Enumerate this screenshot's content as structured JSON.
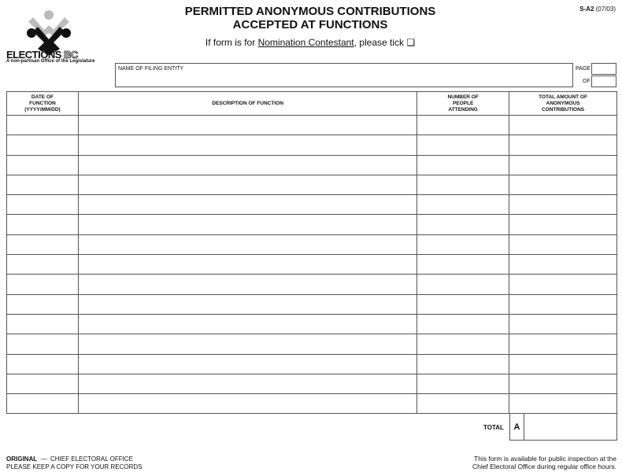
{
  "header": {
    "logo_text": "ELECTIONS BC",
    "brand_main": "ELECTIONS",
    "brand_bc": "BC",
    "tagline": "A non-partisan Office of the Legislature",
    "title_line1": "PERMITTED ANONYMOUS CONTRIBUTIONS",
    "title_line2": "ACCEPTED AT FUNCTIONS",
    "form_number": "S-A2",
    "form_version": "(07/03)",
    "nomination_prefix": "If form is for ",
    "nomination_link": "Nomination Contestant",
    "nomination_suffix": ", please tick",
    "checkbox_glyph": "❑"
  },
  "filing": {
    "name_label": "NAME OF FILING ENTITY",
    "page_label": "PAGE",
    "of_label": "OF"
  },
  "table": {
    "columns": [
      "DATE OF FUNCTION (YYYY/MM/DD)",
      "DESCRIPTION OF FUNCTION",
      "NUMBER OF PEOPLE ATTENDING",
      "TOTAL AMOUNT OF ANONYMOUS CONTRIBUTIONS"
    ],
    "row_count": 15
  },
  "total": {
    "label": "TOTAL",
    "letter": "A"
  },
  "footer": {
    "original": "ORIGINAL",
    "dash": "—",
    "office": "CHIEF ELECTORAL OFFICE",
    "keep_copy": "PLEASE KEEP A COPY FOR YOUR RECORDS",
    "public_line1": "This form is available for public inspection at the",
    "public_line2": "Chief Electoral Office during regular office hours."
  }
}
